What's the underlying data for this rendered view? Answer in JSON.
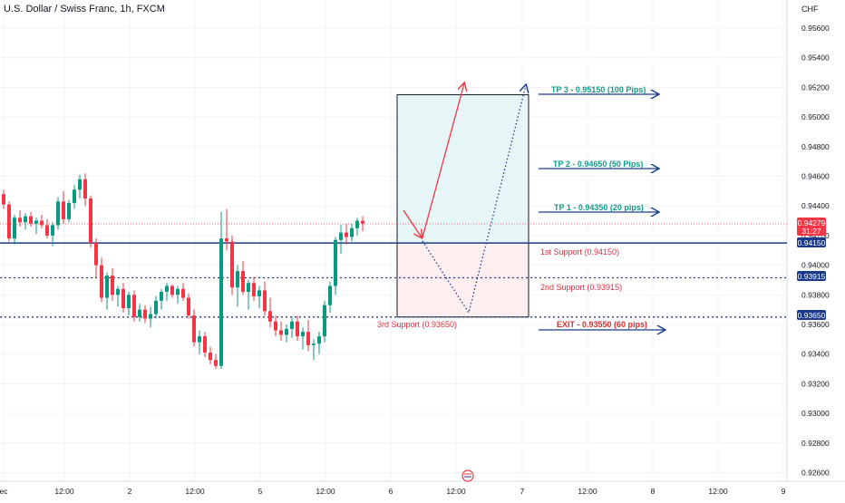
{
  "header": {
    "title": "U.S. Dollar / Swiss Franc, 1h, FXCM"
  },
  "price_axis": {
    "currency": "CHF",
    "ticks": [
      "0.95600",
      "0.95400",
      "0.95200",
      "0.95000",
      "0.94800",
      "0.94600",
      "0.94400",
      "0.94200",
      "0.94000",
      "0.93800",
      "0.93600",
      "0.93400",
      "0.93200",
      "0.93000",
      "0.92800",
      "0.92600"
    ],
    "current_price": "0.94279",
    "countdown": "31:27",
    "marker_labels": [
      "0.94150",
      "0.93915",
      "0.93650"
    ]
  },
  "time_axis": {
    "ticks": [
      "ec",
      "12:00",
      "2",
      "12:00",
      "5",
      "12:00",
      "6",
      "12:00",
      "7",
      "12:00",
      "8",
      "12:00",
      "9"
    ]
  },
  "annotations": {
    "tp3": "TP 3 - 0.95150 (100 Pips)",
    "tp2": "TP 2 - 0.94650 (50 Pips)",
    "tp1": "TP 1 - 0.94350 (20 pips)",
    "support1": "1st Support (0.94150)",
    "support2": "2nd Support (0.93915)",
    "support3": "3rd Support (0.93650)",
    "exit": "EXIT - 0.93550 (60 pips)"
  },
  "colors": {
    "up": "#089981",
    "down": "#f23645",
    "support": "#1e3a8a",
    "tp": "#0f9d8a",
    "exit": "#d32f2f"
  },
  "chart_data": {
    "type": "candlestick",
    "ylim": [
      0.925,
      0.957
    ],
    "levels": {
      "support1": 0.9415,
      "support2": 0.93915,
      "support3": 0.9365,
      "tp1": 0.9435,
      "tp2": 0.9465,
      "tp3": 0.9515,
      "exit": 0.9355,
      "current": 0.94279
    },
    "ohlc": [
      [
        0.9448,
        0.9451,
        0.9438,
        0.9441
      ],
      [
        0.9441,
        0.9443,
        0.9416,
        0.9418
      ],
      [
        0.9418,
        0.9434,
        0.9414,
        0.9432
      ],
      [
        0.9432,
        0.9437,
        0.9426,
        0.9429
      ],
      [
        0.9429,
        0.9435,
        0.9424,
        0.9433
      ],
      [
        0.9433,
        0.9436,
        0.9426,
        0.9428
      ],
      [
        0.9428,
        0.9432,
        0.9421,
        0.943
      ],
      [
        0.943,
        0.9434,
        0.9425,
        0.9427
      ],
      [
        0.9427,
        0.9431,
        0.9418,
        0.942
      ],
      [
        0.942,
        0.9429,
        0.9413,
        0.9427
      ],
      [
        0.9427,
        0.9446,
        0.9424,
        0.9443
      ],
      [
        0.9443,
        0.945,
        0.9428,
        0.9431
      ],
      [
        0.9431,
        0.9444,
        0.9429,
        0.9442
      ],
      [
        0.9442,
        0.9454,
        0.9438,
        0.9451
      ],
      [
        0.9451,
        0.9461,
        0.9445,
        0.9458
      ],
      [
        0.9458,
        0.9462,
        0.944,
        0.9445
      ],
      [
        0.9445,
        0.9447,
        0.9412,
        0.9415
      ],
      [
        0.9415,
        0.9418,
        0.9392,
        0.94
      ],
      [
        0.94,
        0.9405,
        0.9375,
        0.9378
      ],
      [
        0.9378,
        0.9395,
        0.937,
        0.9393
      ],
      [
        0.9393,
        0.9398,
        0.9376,
        0.938
      ],
      [
        0.938,
        0.9386,
        0.9372,
        0.9384
      ],
      [
        0.9384,
        0.9388,
        0.9368,
        0.9371
      ],
      [
        0.9371,
        0.9382,
        0.9366,
        0.938
      ],
      [
        0.938,
        0.9383,
        0.9362,
        0.9365
      ],
      [
        0.9365,
        0.9374,
        0.9362,
        0.937
      ],
      [
        0.937,
        0.9373,
        0.9361,
        0.9364
      ],
      [
        0.9364,
        0.9372,
        0.9358,
        0.9367
      ],
      [
        0.9367,
        0.9379,
        0.9364,
        0.9376
      ],
      [
        0.9376,
        0.9384,
        0.937,
        0.9382
      ],
      [
        0.9382,
        0.9388,
        0.9376,
        0.9386
      ],
      [
        0.9386,
        0.9387,
        0.9378,
        0.938
      ],
      [
        0.938,
        0.9386,
        0.9374,
        0.9384
      ],
      [
        0.9384,
        0.9388,
        0.9376,
        0.9378
      ],
      [
        0.9378,
        0.9381,
        0.9364,
        0.9366
      ],
      [
        0.9366,
        0.937,
        0.9345,
        0.9348
      ],
      [
        0.9348,
        0.9356,
        0.934,
        0.9352
      ],
      [
        0.9352,
        0.9355,
        0.9338,
        0.9341
      ],
      [
        0.9341,
        0.9345,
        0.9333,
        0.9336
      ],
      [
        0.9336,
        0.934,
        0.933,
        0.9332
      ],
      [
        0.9332,
        0.9436,
        0.933,
        0.9418
      ],
      [
        0.9418,
        0.9438,
        0.941,
        0.9416
      ],
      [
        0.9416,
        0.942,
        0.938,
        0.9385
      ],
      [
        0.9385,
        0.94,
        0.9372,
        0.9396
      ],
      [
        0.9396,
        0.9403,
        0.938,
        0.9382
      ],
      [
        0.9382,
        0.939,
        0.937,
        0.9388
      ],
      [
        0.9388,
        0.9392,
        0.9376,
        0.9379
      ],
      [
        0.9379,
        0.9386,
        0.9371,
        0.9383
      ],
      [
        0.9383,
        0.9389,
        0.9366,
        0.9369
      ],
      [
        0.9369,
        0.9378,
        0.9358,
        0.9362
      ],
      [
        0.9362,
        0.9366,
        0.9352,
        0.9356
      ],
      [
        0.9356,
        0.9362,
        0.9349,
        0.9353
      ],
      [
        0.9353,
        0.936,
        0.9348,
        0.9357
      ],
      [
        0.9357,
        0.9365,
        0.9351,
        0.9362
      ],
      [
        0.9362,
        0.9366,
        0.9349,
        0.9352
      ],
      [
        0.9352,
        0.9358,
        0.9343,
        0.9355
      ],
      [
        0.9355,
        0.9363,
        0.9342,
        0.9346
      ],
      [
        0.9346,
        0.935,
        0.9336,
        0.9347
      ],
      [
        0.9347,
        0.9355,
        0.934,
        0.9352
      ],
      [
        0.9352,
        0.9376,
        0.9348,
        0.9373
      ],
      [
        0.9373,
        0.9389,
        0.9368,
        0.9386
      ],
      [
        0.9386,
        0.9419,
        0.938,
        0.9417
      ],
      [
        0.9417,
        0.9427,
        0.9408,
        0.9422
      ],
      [
        0.9422,
        0.9428,
        0.9414,
        0.9419
      ],
      [
        0.9419,
        0.9428,
        0.9416,
        0.9425
      ],
      [
        0.9425,
        0.9432,
        0.942,
        0.943
      ],
      [
        0.943,
        0.9433,
        0.9423,
        0.9428
      ]
    ]
  }
}
